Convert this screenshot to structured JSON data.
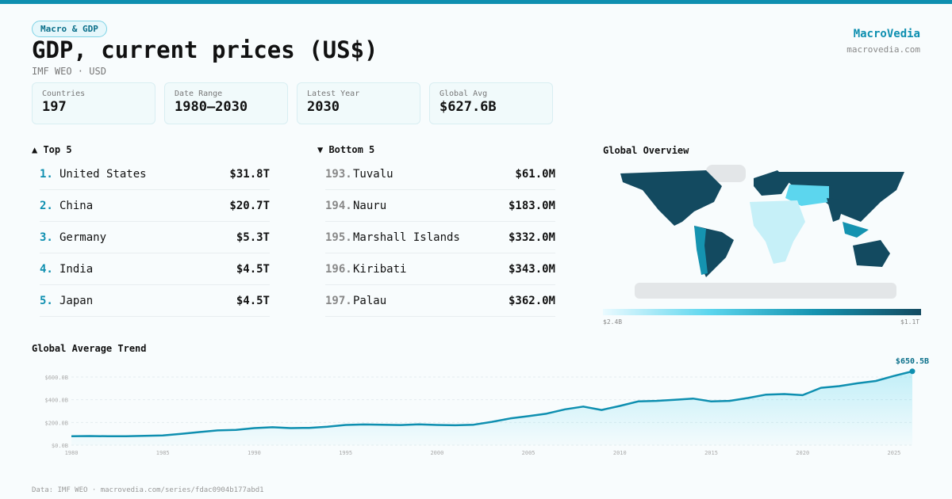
{
  "header": {
    "badge": "Macro & GDP",
    "title": "GDP, current prices (US$)",
    "subtitle": "IMF WEO · USD",
    "brand": "MacroVedia",
    "brand_url": "macrovedia.com"
  },
  "stats": [
    {
      "label": "Countries",
      "value": "197"
    },
    {
      "label": "Date Range",
      "value": "1980–2030"
    },
    {
      "label": "Latest Year",
      "value": "2030"
    },
    {
      "label": "Global Avg",
      "value": "$627.6B"
    }
  ],
  "top": {
    "title": "▲ Top 5",
    "items": [
      {
        "rank": "1.",
        "name": "United States",
        "value": "$31.8T"
      },
      {
        "rank": "2.",
        "name": "China",
        "value": "$20.7T"
      },
      {
        "rank": "3.",
        "name": "Germany",
        "value": "$5.3T"
      },
      {
        "rank": "4.",
        "name": "India",
        "value": "$4.5T"
      },
      {
        "rank": "5.",
        "name": "Japan",
        "value": "$4.5T"
      }
    ]
  },
  "bottom": {
    "title": "▼ Bottom 5",
    "items": [
      {
        "rank": "193.",
        "name": "Tuvalu",
        "value": "$61.0M"
      },
      {
        "rank": "194.",
        "name": "Nauru",
        "value": "$183.0M"
      },
      {
        "rank": "195.",
        "name": "Marshall Islands",
        "value": "$332.0M"
      },
      {
        "rank": "196.",
        "name": "Kiribati",
        "value": "$343.0M"
      },
      {
        "rank": "197.",
        "name": "Palau",
        "value": "$362.0M"
      }
    ]
  },
  "map": {
    "title": "Global Overview",
    "scale_min": "$2.4B",
    "scale_max": "$1.1T",
    "colors": [
      "#eafaff",
      "#5cd6ee",
      "#1593b0",
      "#134a60"
    ],
    "no_data_color": "#e3e6e8"
  },
  "chart_data": {
    "type": "area",
    "title": "Global Average Trend",
    "color": "#0e8fb0",
    "x": [
      1980,
      1981,
      1982,
      1983,
      1984,
      1985,
      1986,
      1987,
      1988,
      1989,
      1990,
      1991,
      1992,
      1993,
      1994,
      1995,
      1996,
      1997,
      1998,
      1999,
      2000,
      2001,
      2002,
      2003,
      2004,
      2005,
      2006,
      2007,
      2008,
      2009,
      2010,
      2011,
      2012,
      2013,
      2014,
      2015,
      2016,
      2017,
      2018,
      2019,
      2020,
      2021,
      2022,
      2023,
      2024,
      2025,
      2026
    ],
    "y": [
      78,
      80,
      78,
      79,
      82,
      85,
      100,
      115,
      130,
      135,
      150,
      158,
      150,
      152,
      162,
      178,
      182,
      180,
      177,
      183,
      178,
      175,
      180,
      205,
      235,
      255,
      278,
      315,
      340,
      310,
      345,
      385,
      390,
      400,
      410,
      385,
      390,
      415,
      445,
      450,
      440,
      505,
      520,
      545,
      565,
      610,
      650.5
    ],
    "yticks": [
      "$0.0B",
      "$200.0B",
      "$400.0B",
      "$600.0B"
    ],
    "ytick_values": [
      0,
      200,
      400,
      600
    ],
    "xticks": [
      1980,
      1985,
      1990,
      1995,
      2000,
      2005,
      2010,
      2015,
      2020,
      2025
    ],
    "ylim": [
      0,
      650.5
    ],
    "grid": true,
    "last_label": "$650.5B"
  },
  "footer": "Data: IMF WEO · macrovedia.com/series/fdac0904b177abd1"
}
